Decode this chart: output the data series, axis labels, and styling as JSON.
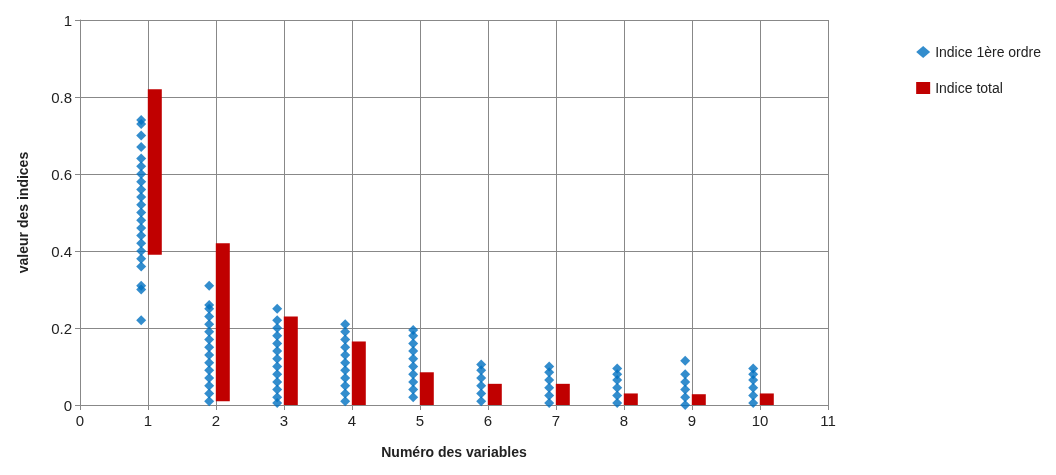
{
  "chart_data": {
    "type": "scatter",
    "xlabel": "Numéro des variables",
    "ylabel": "valeur des indices",
    "xlim": [
      0,
      11
    ],
    "xticks": [
      0,
      1,
      2,
      3,
      4,
      5,
      6,
      7,
      8,
      9,
      10,
      11
    ],
    "ylim": [
      0,
      1
    ],
    "yticks": [
      0,
      0.2,
      0.4,
      0.6,
      0.8,
      1
    ],
    "grid": true,
    "legend": "right",
    "series": [
      {
        "name": "Indice 1ère ordre",
        "marker": "diamond",
        "color": "#0070c0",
        "x": [
          0.9,
          0.9,
          0.9,
          0.9,
          0.9,
          0.9,
          0.9,
          0.9,
          0.9,
          0.9,
          0.9,
          0.9,
          0.9,
          0.9,
          0.9,
          0.9,
          0.9,
          0.9,
          0.9,
          0.9,
          0.9,
          0.9,
          1.9,
          1.9,
          1.9,
          1.9,
          1.9,
          1.9,
          1.9,
          1.9,
          1.9,
          1.9,
          1.9,
          1.9,
          1.9,
          1.9,
          1.9,
          2.9,
          2.9,
          2.9,
          2.9,
          2.9,
          2.9,
          2.9,
          2.9,
          2.9,
          2.9,
          2.9,
          2.9,
          2.9,
          3.9,
          3.9,
          3.9,
          3.9,
          3.9,
          3.9,
          3.9,
          3.9,
          3.9,
          3.9,
          3.9,
          4.9,
          4.9,
          4.9,
          4.9,
          4.9,
          4.9,
          4.9,
          4.9,
          4.9,
          4.9,
          5.9,
          5.9,
          5.9,
          5.9,
          5.9,
          5.9,
          6.9,
          6.9,
          6.9,
          6.9,
          6.9,
          6.9,
          7.9,
          7.9,
          7.9,
          7.9,
          7.9,
          7.9,
          8.9,
          8.9,
          8.9,
          8.9,
          8.9,
          8.9,
          9.9,
          9.9,
          9.9,
          9.9,
          9.9,
          9.9
        ],
        "values": [
          0.22,
          0.3,
          0.31,
          0.36,
          0.38,
          0.4,
          0.42,
          0.44,
          0.46,
          0.48,
          0.5,
          0.52,
          0.54,
          0.56,
          0.58,
          0.6,
          0.62,
          0.64,
          0.67,
          0.7,
          0.73,
          0.74,
          0.01,
          0.03,
          0.05,
          0.07,
          0.09,
          0.11,
          0.13,
          0.15,
          0.17,
          0.19,
          0.21,
          0.23,
          0.25,
          0.26,
          0.31,
          0.005,
          0.02,
          0.04,
          0.06,
          0.08,
          0.1,
          0.12,
          0.14,
          0.16,
          0.18,
          0.2,
          0.22,
          0.25,
          0.01,
          0.03,
          0.05,
          0.07,
          0.09,
          0.11,
          0.13,
          0.15,
          0.17,
          0.19,
          0.21,
          0.02,
          0.04,
          0.06,
          0.08,
          0.1,
          0.12,
          0.14,
          0.16,
          0.18,
          0.195,
          0.01,
          0.03,
          0.05,
          0.07,
          0.09,
          0.105,
          0.005,
          0.025,
          0.045,
          0.065,
          0.085,
          0.1,
          0.005,
          0.025,
          0.045,
          0.065,
          0.08,
          0.095,
          0.0,
          0.02,
          0.04,
          0.06,
          0.08,
          0.115,
          0.005,
          0.025,
          0.045,
          0.065,
          0.08,
          0.095
        ]
      },
      {
        "name": "Indice total",
        "type": "bar",
        "color": "#c00000",
        "x": [
          1.1,
          2.1,
          3.1,
          4.1,
          5.1,
          6.1,
          7.1,
          8.1,
          9.1,
          10.1
        ],
        "base": [
          0.39,
          0.01,
          0,
          0,
          0,
          0,
          0,
          0,
          0,
          0
        ],
        "values": [
          0.43,
          0.41,
          0.23,
          0.165,
          0.085,
          0.055,
          0.055,
          0.03,
          0.028,
          0.03
        ]
      }
    ]
  }
}
